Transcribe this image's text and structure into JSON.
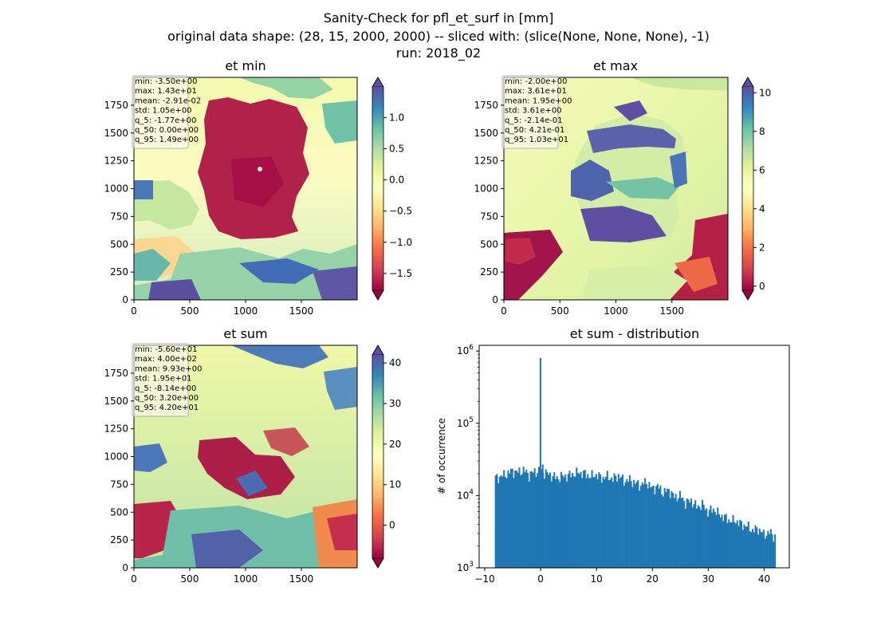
{
  "figure": {
    "title_lines": [
      "Sanity-Check for pfl_et_surf in [mm]",
      "original data shape: (28, 15, 2000, 2000) -- sliced with: (slice(None, None, None), -1)",
      "run: 2018_02"
    ]
  },
  "panels": {
    "et_min": {
      "title": "et min",
      "stats": [
        "min: -3.50e+00",
        "max: 1.43e+01",
        "mean: -2.91e-02",
        "std: 1.05e+00",
        "q_5: -1.77e+00",
        "q_50: 0.00e+00",
        "q_95: 1.49e+00"
      ],
      "colorbar_ticks": [
        {
          "label": "1.0",
          "value": 1.0
        },
        {
          "label": "0.5",
          "value": 0.5
        },
        {
          "label": "0.0",
          "value": 0.0
        },
        {
          "label": "−0.5",
          "value": -0.5
        },
        {
          "label": "−1.0",
          "value": -1.0
        },
        {
          "label": "−1.5",
          "value": -1.5
        }
      ],
      "colorbar_range": [
        -1.77,
        1.49
      ]
    },
    "et_max": {
      "title": "et max",
      "stats": [
        "min: -2.00e+00",
        "max: 3.61e+01",
        "mean: 1.95e+00",
        "std: 3.61e+00",
        "q_5: -2.14e-01",
        "q_50: 4.21e-01",
        "q_95: 1.03e+01"
      ],
      "colorbar_ticks": [
        {
          "label": "10",
          "value": 10
        },
        {
          "label": "8",
          "value": 8
        },
        {
          "label": "6",
          "value": 6
        },
        {
          "label": "4",
          "value": 4
        },
        {
          "label": "2",
          "value": 2
        },
        {
          "label": "0",
          "value": 0
        }
      ],
      "colorbar_range": [
        -0.214,
        10.3
      ]
    },
    "et_sum": {
      "title": "et sum",
      "stats": [
        "min: -5.60e+01",
        "max: 4.00e+02",
        "mean: 9.93e+00",
        "std: 1.95e+01",
        "q_5: -8.14e+00",
        "q_50: 3.20e+00",
        "q_95: 4.20e+01"
      ],
      "colorbar_ticks": [
        {
          "label": "40",
          "value": 40
        },
        {
          "label": "30",
          "value": 30
        },
        {
          "label": "20",
          "value": 20
        },
        {
          "label": "10",
          "value": 10
        },
        {
          "label": "0",
          "value": 0
        }
      ],
      "colorbar_range": [
        -8.14,
        42.0
      ]
    }
  },
  "map_axes": {
    "x_ticks": [
      "0",
      "500",
      "1000",
      "1500"
    ],
    "y_ticks": [
      "0",
      "250",
      "500",
      "750",
      "1000",
      "1250",
      "1500",
      "1750"
    ]
  },
  "chart_data": {
    "type": "bar",
    "title": "et sum - distribution",
    "ylabel": "# of occurrence",
    "xlabel": "",
    "yscale": "log",
    "ylim": [
      1000,
      1200000
    ],
    "xlim": [
      -11,
      44.5
    ],
    "x_ticks": [
      {
        "label": "−10",
        "value": -10
      },
      {
        "label": "0",
        "value": 0
      },
      {
        "label": "10",
        "value": 10
      },
      {
        "label": "20",
        "value": 20
      },
      {
        "label": "30",
        "value": 30
      },
      {
        "label": "40",
        "value": 40
      }
    ],
    "y_ticks": [
      {
        "label": "10",
        "exp": "3",
        "value": 1000
      },
      {
        "label": "10",
        "exp": "4",
        "value": 10000
      },
      {
        "label": "10",
        "exp": "5",
        "value": 100000
      },
      {
        "label": "10",
        "exp": "6",
        "value": 1000000
      }
    ],
    "color": "#1f77b4",
    "bin_edges_range": [
      -8.2,
      42.0
    ],
    "bin_width": 0.25,
    "bin_centers": [
      -8.075,
      -7.075,
      -6.075,
      -5.075,
      -4.075,
      -3.075,
      -2.075,
      -1.075,
      -0.075,
      0.925,
      1.925,
      2.925,
      3.925,
      4.925,
      5.925,
      6.925,
      7.925,
      8.925,
      9.925,
      10.925,
      11.925,
      12.925,
      13.925,
      14.925,
      15.925,
      16.925,
      17.925,
      18.925,
      19.925,
      20.925,
      21.925,
      22.925,
      23.925,
      24.925,
      25.925,
      26.925,
      27.925,
      28.925,
      29.925,
      30.925,
      31.925,
      32.925,
      33.925,
      34.925,
      35.925,
      36.925,
      37.925,
      38.925,
      39.925,
      40.925,
      41.925
    ],
    "counts": [
      17500,
      18500,
      20000,
      22000,
      21000,
      22500,
      19500,
      21500,
      22000,
      20500,
      19000,
      17500,
      18500,
      19000,
      20000,
      21000,
      20000,
      18500,
      19500,
      17500,
      18500,
      17000,
      19000,
      16000,
      16500,
      15000,
      14000,
      15500,
      12500,
      13500,
      11000,
      12000,
      9500,
      10000,
      8000,
      8500,
      7000,
      7500,
      6000,
      6500,
      5500,
      5000,
      4500,
      4500,
      4000,
      3800,
      3300,
      3500,
      2900,
      3100,
      2700
    ],
    "spikes": [
      {
        "x": -0.05,
        "count": 800000
      },
      {
        "x": 0.35,
        "count": 27000
      }
    ]
  }
}
